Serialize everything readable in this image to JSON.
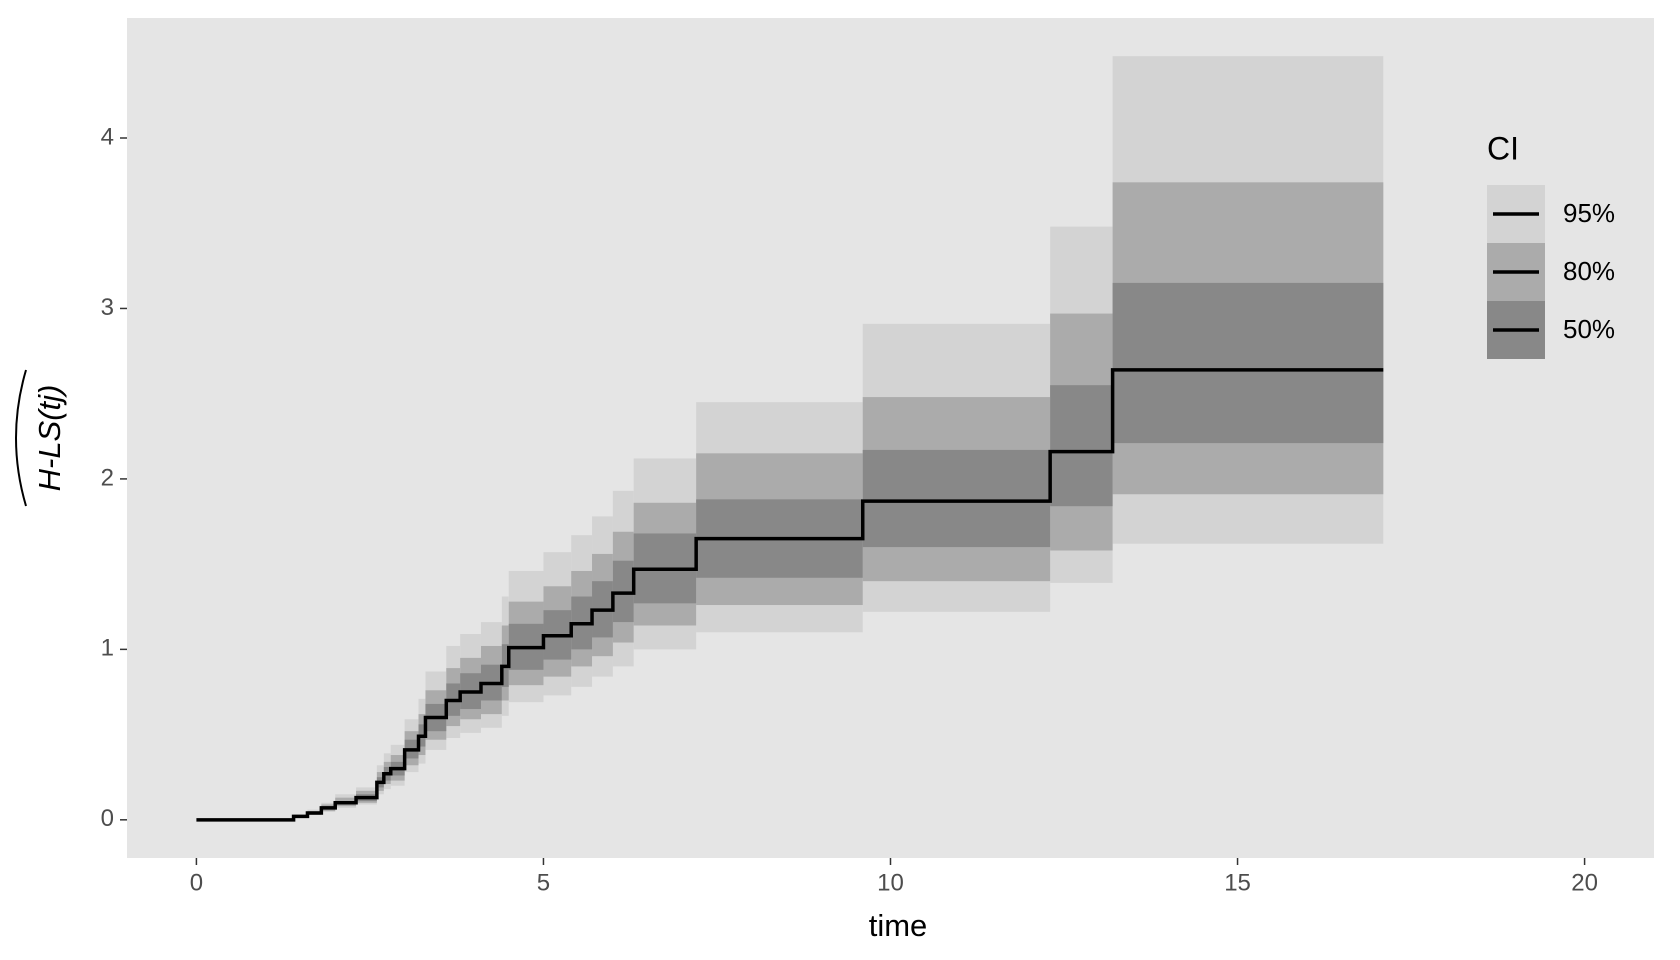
{
  "chart_data": {
    "type": "step-ci",
    "xlabel": "time",
    "ylabel": "H-LS(tj)",
    "legend_title": "CI",
    "x": [
      0,
      1.4,
      1.6,
      1.8,
      2.0,
      2.3,
      2.6,
      2.7,
      2.8,
      3.0,
      3.2,
      3.3,
      3.6,
      3.8,
      4.1,
      4.4,
      4.5,
      5.0,
      5.4,
      5.7,
      6.0,
      6.3,
      7.2,
      9.6,
      12.3,
      13.2
    ],
    "x_end": 17.1,
    "values": [
      0,
      0.02,
      0.04,
      0.07,
      0.1,
      0.13,
      0.22,
      0.27,
      0.3,
      0.41,
      0.49,
      0.6,
      0.7,
      0.75,
      0.8,
      0.9,
      1.01,
      1.08,
      1.15,
      1.23,
      1.33,
      1.47,
      1.65,
      1.87,
      2.16,
      2.64
    ],
    "line_color": "#000000",
    "series": [
      {
        "name": "95%",
        "color": "#d3d3d3",
        "lower": [
          0,
          0.01,
          0.03,
          0.05,
          0.07,
          0.09,
          0.15,
          0.18,
          0.2,
          0.28,
          0.33,
          0.41,
          0.48,
          0.51,
          0.54,
          0.61,
          0.69,
          0.73,
          0.78,
          0.84,
          0.9,
          1.0,
          1.1,
          1.22,
          1.39,
          1.62
        ],
        "upper": [
          0,
          0.03,
          0.06,
          0.1,
          0.15,
          0.19,
          0.32,
          0.39,
          0.44,
          0.59,
          0.71,
          0.87,
          1.02,
          1.09,
          1.16,
          1.31,
          1.46,
          1.57,
          1.67,
          1.78,
          1.93,
          2.12,
          2.45,
          2.91,
          3.48,
          4.48
        ]
      },
      {
        "name": "80%",
        "color": "#ababab",
        "lower": [
          0,
          0.02,
          0.03,
          0.05,
          0.08,
          0.1,
          0.17,
          0.21,
          0.23,
          0.32,
          0.38,
          0.47,
          0.55,
          0.59,
          0.62,
          0.7,
          0.79,
          0.84,
          0.9,
          0.96,
          1.04,
          1.14,
          1.26,
          1.4,
          1.58,
          1.91
        ],
        "upper": [
          0,
          0.03,
          0.05,
          0.09,
          0.13,
          0.17,
          0.28,
          0.34,
          0.38,
          0.52,
          0.62,
          0.76,
          0.89,
          0.95,
          1.02,
          1.14,
          1.28,
          1.37,
          1.46,
          1.56,
          1.69,
          1.86,
          2.15,
          2.48,
          2.97,
          3.74
        ]
      },
      {
        "name": "50%",
        "color": "#888888",
        "lower": [
          0,
          0.02,
          0.03,
          0.06,
          0.09,
          0.11,
          0.19,
          0.23,
          0.26,
          0.36,
          0.43,
          0.52,
          0.61,
          0.65,
          0.7,
          0.78,
          0.88,
          0.94,
          1.0,
          1.07,
          1.16,
          1.27,
          1.42,
          1.6,
          1.84,
          2.21
        ],
        "upper": [
          0,
          0.02,
          0.05,
          0.08,
          0.11,
          0.15,
          0.25,
          0.31,
          0.34,
          0.47,
          0.56,
          0.68,
          0.8,
          0.86,
          0.91,
          1.03,
          1.15,
          1.23,
          1.31,
          1.4,
          1.52,
          1.68,
          1.88,
          2.17,
          2.55,
          3.15
        ]
      }
    ],
    "xlim": [
      -1,
      21
    ],
    "xticks": [
      0,
      5,
      10,
      15,
      20
    ],
    "ylim": [
      -0.224,
      4.704
    ],
    "yticks": [
      0,
      1,
      2,
      3,
      4
    ],
    "grid": false,
    "panel_color": "#e5e5e5",
    "legend": "top-right"
  }
}
